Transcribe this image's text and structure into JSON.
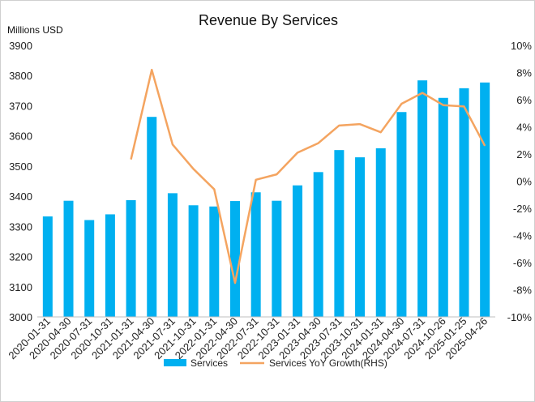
{
  "chart_data": {
    "type": "bar",
    "title": "Revenue By Services",
    "ylabel": "Millions USD",
    "ylim": [
      3000,
      3900
    ],
    "y_ticks": [
      "3000",
      "3100",
      "3200",
      "3300",
      "3400",
      "3500",
      "3600",
      "3700",
      "3800",
      "3900"
    ],
    "y2lim": [
      -10,
      10
    ],
    "y2_ticks": [
      "-10%",
      "-8%",
      "-6%",
      "-4%",
      "-2%",
      "0%",
      "2%",
      "4%",
      "6%",
      "8%",
      "10%"
    ],
    "grid": false,
    "legend_position": "bottom",
    "categories": [
      "2020-01-31",
      "2020-04-30",
      "2020-07-31",
      "2020-10-31",
      "2021-01-31",
      "2021-04-30",
      "2021-07-31",
      "2021-10-31",
      "2022-01-31",
      "2022-04-30",
      "2022-07-31",
      "2022-10-31",
      "2023-01-31",
      "2023-04-30",
      "2023-07-31",
      "2023-10-31",
      "2024-01-31",
      "2024-04-30",
      "2024-07-31",
      "2024-10-26",
      "2025-01-25",
      "2025-04-26"
    ],
    "series": [
      {
        "name": "Services",
        "type": "bar",
        "axis": "left",
        "color": "#00b0f0",
        "values": [
          3333,
          3385,
          3321,
          3340,
          3387,
          3663,
          3410,
          3370,
          3366,
          3384,
          3413,
          3385,
          3436,
          3480,
          3553,
          3529,
          3559,
          3679,
          3784,
          3726,
          3758,
          3777
        ]
      },
      {
        "name": "Services YoY Growth(RHS)",
        "type": "line",
        "axis": "right",
        "color": "#f4a460",
        "values": [
          null,
          null,
          null,
          null,
          1.6,
          8.2,
          2.7,
          0.9,
          -0.6,
          -7.5,
          0.1,
          0.5,
          2.1,
          2.8,
          4.1,
          4.2,
          3.6,
          5.7,
          6.5,
          5.6,
          5.5,
          2.6
        ]
      }
    ]
  }
}
